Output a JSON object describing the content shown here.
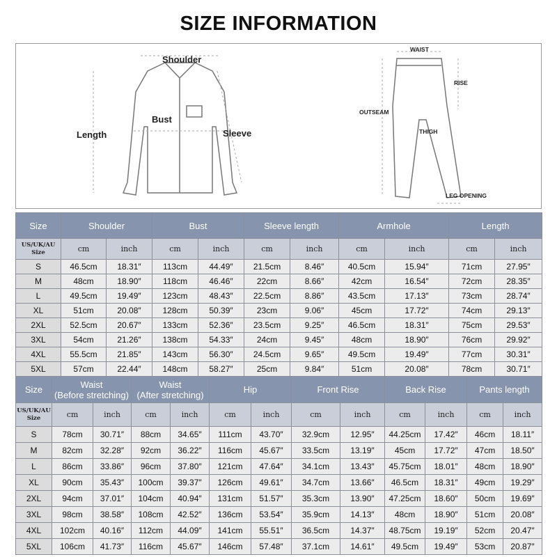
{
  "title": "SIZE INFORMATION",
  "diagram": {
    "shirt_labels": {
      "shoulder": "Shoulder",
      "bust": "Bust",
      "length": "Length",
      "sleeve": "Sleeve"
    },
    "pants_labels": {
      "waist": "WAIST",
      "rise": "RISE",
      "outseam": "OUTSEAM",
      "thigh": "THIGH",
      "leg_opening": "LEG OPENING"
    }
  },
  "shirt_table": {
    "header": [
      "Size",
      "Shoulder",
      "Bust",
      "Sleeve length",
      "Armhole",
      "Length"
    ],
    "subheader": [
      "US/UK/AU\nSize",
      "cm",
      "inch",
      "cm",
      "inch",
      "cm",
      "inch",
      "cm",
      "inch",
      "cm",
      "inch"
    ],
    "rows": [
      [
        "S",
        "46.5cm",
        "18.31″",
        "113cm",
        "44.49″",
        "21.5cm",
        "8.46″",
        "40.5cm",
        "15.94″",
        "71cm",
        "27.95″"
      ],
      [
        "M",
        "48cm",
        "18.90″",
        "118cm",
        "46.46″",
        "22cm",
        "8.66″",
        "42cm",
        "16.54″",
        "72cm",
        "28.35″"
      ],
      [
        "L",
        "49.5cm",
        "19.49″",
        "123cm",
        "48.43″",
        "22.5cm",
        "8.86″",
        "43.5cm",
        "17.13″",
        "73cm",
        "28.74″"
      ],
      [
        "XL",
        "51cm",
        "20.08″",
        "128cm",
        "50.39″",
        "23cm",
        "9.06″",
        "45cm",
        "17.72″",
        "74cm",
        "29.13″"
      ],
      [
        "2XL",
        "52.5cm",
        "20.67″",
        "133cm",
        "52.36″",
        "23.5cm",
        "9.25″",
        "46.5cm",
        "18.31″",
        "75cm",
        "29.53″"
      ],
      [
        "3XL",
        "54cm",
        "21.26″",
        "138cm",
        "54.33″",
        "24cm",
        "9.45″",
        "48cm",
        "18.90″",
        "76cm",
        "29.92″"
      ],
      [
        "4XL",
        "55.5cm",
        "21.85″",
        "143cm",
        "56.30″",
        "24.5cm",
        "9.65″",
        "49.5cm",
        "19.49″",
        "77cm",
        "30.31″"
      ],
      [
        "5XL",
        "57cm",
        "22.44″",
        "148cm",
        "58.27″",
        "25cm",
        "9.84″",
        "51cm",
        "20.08″",
        "78cm",
        "30.71″"
      ]
    ]
  },
  "pants_table": {
    "header": [
      "Size",
      "Waist\n(Before stretching)",
      "Waist\n(After stretching)",
      "Hip",
      "Front Rise",
      "Back Rise",
      "Pants length"
    ],
    "subheader": [
      "US/UK/AU\nSize",
      "cm",
      "inch",
      "cm",
      "inch",
      "cm",
      "inch",
      "cm",
      "inch",
      "cm",
      "inch",
      "cm",
      "inch"
    ],
    "rows": [
      [
        "S",
        "78cm",
        "30.71″",
        "88cm",
        "34.65″",
        "111cm",
        "43.70″",
        "32.9cm",
        "12.95″",
        "44.25cm",
        "17.42″",
        "46cm",
        "18.11″"
      ],
      [
        "M",
        "82cm",
        "32.28″",
        "92cm",
        "36.22″",
        "116cm",
        "45.67″",
        "33.5cm",
        "13.19″",
        "45cm",
        "17.72″",
        "47cm",
        "18.50″"
      ],
      [
        "L",
        "86cm",
        "33.86″",
        "96cm",
        "37.80″",
        "121cm",
        "47.64″",
        "34.1cm",
        "13.43″",
        "45.75cm",
        "18.01″",
        "48cm",
        "18.90″"
      ],
      [
        "XL",
        "90cm",
        "35.43″",
        "100cm",
        "39.37″",
        "126cm",
        "49.61″",
        "34.7cm",
        "13.66″",
        "46.5cm",
        "18.31″",
        "49cm",
        "19.29″"
      ],
      [
        "2XL",
        "94cm",
        "37.01″",
        "104cm",
        "40.94″",
        "131cm",
        "51.57″",
        "35.3cm",
        "13.90″",
        "47.25cm",
        "18.60″",
        "50cm",
        "19.69″"
      ],
      [
        "3XL",
        "98cm",
        "38.58″",
        "108cm",
        "42.52″",
        "136cm",
        "53.54″",
        "35.9cm",
        "14.13″",
        "48cm",
        "18.90″",
        "51cm",
        "20.08″"
      ],
      [
        "4XL",
        "102cm",
        "40.16″",
        "112cm",
        "44.09″",
        "141cm",
        "55.51″",
        "36.5cm",
        "14.37″",
        "48.75cm",
        "19.19″",
        "52cm",
        "20.47″"
      ],
      [
        "5XL",
        "106cm",
        "41.73″",
        "116cm",
        "45.67″",
        "146cm",
        "57.48″",
        "37.1cm",
        "14.61″",
        "49.5cm",
        "19.49″",
        "53cm",
        "20.87″"
      ]
    ]
  }
}
